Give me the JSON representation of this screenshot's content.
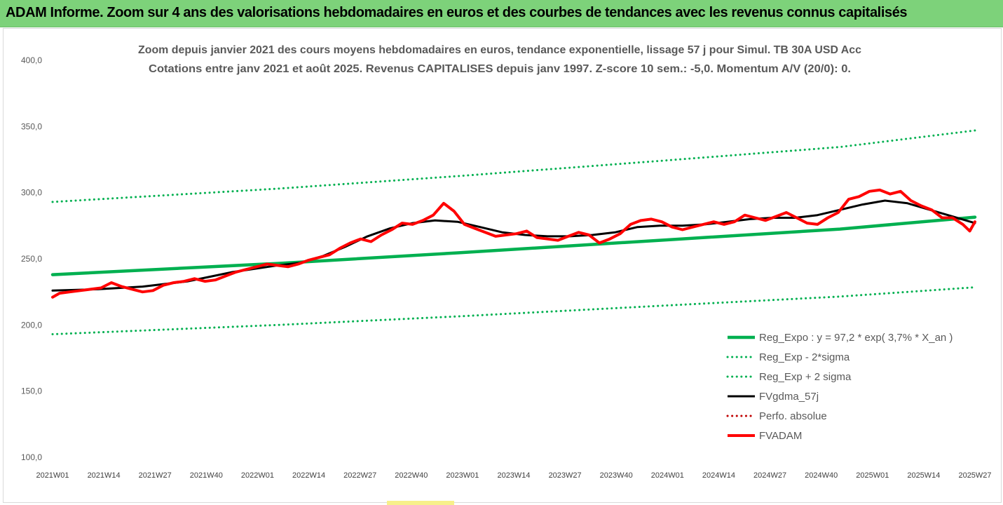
{
  "header": {
    "title": "ADAM Informe. Zoom sur 4 ans des valorisations hebdomadaires en euros et des courbes de tendances avec les revenus connus capitalisés"
  },
  "colors": {
    "banner": "#7dd27a",
    "regression": "#00b050",
    "smoothing": "#000000",
    "price": "#ff0000",
    "perf": "#c00000"
  },
  "chart_data": {
    "type": "line",
    "title": "Zoom depuis janvier 2021 des cours moyens hebdomadaires en euros, tendance exponentielle, lissage 57 j pour Simul. TB 30A USD Acc",
    "subtitle": "Cotations entre janv 2021 et août 2025. Revenus CAPITALISES depuis janv 1997. Z-score 10 sem.: -5,0. Momentum A/V (20/0): 0.",
    "ylim": [
      100,
      400
    ],
    "yticks": [
      "100,0",
      "150,0",
      "200,0",
      "250,0",
      "300,0",
      "350,0",
      "400,0"
    ],
    "x_tick_labels": [
      "2021W01",
      "2021W14",
      "2021W27",
      "2021W40",
      "2022W01",
      "2022W14",
      "2022W27",
      "2022W40",
      "2023W01",
      "2023W14",
      "2023W27",
      "2023W40",
      "2024W01",
      "2024W14",
      "2024W27",
      "2024W40",
      "2025W01",
      "2025W14",
      "2025W27"
    ],
    "grid": false,
    "legend_position": "bottom-right",
    "series": [
      {
        "name": "Reg_Expo : y = 97,2 * exp( 3,7% * X_an )",
        "style": "solid-thick",
        "color": "#00b050",
        "points": [
          [
            0,
            238
          ],
          [
            130,
            246.5
          ],
          [
            234,
            254.5
          ],
          [
            351,
            264
          ],
          [
            455,
            272.5
          ],
          [
            533,
            281.5
          ]
        ]
      },
      {
        "name": "Reg_Exp - 2*sigma",
        "style": "dotted",
        "color": "#00b050",
        "points": [
          [
            0,
            193
          ],
          [
            130,
            200
          ],
          [
            234,
            206.5
          ],
          [
            351,
            214.5
          ],
          [
            455,
            221.5
          ],
          [
            533,
            228.5
          ]
        ]
      },
      {
        "name": "Reg_Exp + 2 sigma",
        "style": "dotted",
        "color": "#00b050",
        "points": [
          [
            0,
            293
          ],
          [
            130,
            303
          ],
          [
            234,
            312.5
          ],
          [
            351,
            324
          ],
          [
            455,
            334.5
          ],
          [
            533,
            347
          ]
        ]
      },
      {
        "name": "FVgdma_57j",
        "style": "solid",
        "color": "#000000",
        "points": [
          [
            0,
            226
          ],
          [
            26,
            227
          ],
          [
            52,
            229
          ],
          [
            78,
            233
          ],
          [
            104,
            240
          ],
          [
            130,
            245
          ],
          [
            143,
            247
          ],
          [
            156,
            252
          ],
          [
            169,
            259
          ],
          [
            182,
            267
          ],
          [
            195,
            273
          ],
          [
            208,
            277
          ],
          [
            221,
            279
          ],
          [
            234,
            278
          ],
          [
            247,
            274
          ],
          [
            260,
            270
          ],
          [
            273,
            268
          ],
          [
            286,
            267
          ],
          [
            299,
            267
          ],
          [
            312,
            268
          ],
          [
            325,
            270
          ],
          [
            338,
            274
          ],
          [
            351,
            275
          ],
          [
            364,
            275
          ],
          [
            377,
            276
          ],
          [
            390,
            278
          ],
          [
            403,
            280
          ],
          [
            416,
            281
          ],
          [
            429,
            281
          ],
          [
            442,
            283
          ],
          [
            455,
            287
          ],
          [
            468,
            291
          ],
          [
            481,
            294
          ],
          [
            494,
            292
          ],
          [
            507,
            287
          ],
          [
            520,
            282
          ],
          [
            533,
            277
          ]
        ]
      },
      {
        "name": "Perfo. absolue",
        "style": "dotted",
        "color": "#c00000",
        "points": []
      },
      {
        "name": "FVADAM",
        "style": "solid-thick",
        "color": "#ff0000",
        "points": [
          [
            0,
            221
          ],
          [
            4,
            224
          ],
          [
            10,
            225
          ],
          [
            16,
            226
          ],
          [
            22,
            227
          ],
          [
            28,
            228
          ],
          [
            34,
            232
          ],
          [
            40,
            229
          ],
          [
            46,
            227
          ],
          [
            52,
            225
          ],
          [
            58,
            226
          ],
          [
            64,
            230
          ],
          [
            70,
            232
          ],
          [
            76,
            233
          ],
          [
            82,
            235
          ],
          [
            88,
            233
          ],
          [
            94,
            234
          ],
          [
            100,
            237
          ],
          [
            106,
            240
          ],
          [
            112,
            242
          ],
          [
            118,
            244
          ],
          [
            124,
            246
          ],
          [
            130,
            245
          ],
          [
            136,
            244
          ],
          [
            142,
            246
          ],
          [
            148,
            249
          ],
          [
            154,
            251
          ],
          [
            160,
            253
          ],
          [
            166,
            258
          ],
          [
            172,
            262
          ],
          [
            178,
            265
          ],
          [
            184,
            263
          ],
          [
            190,
            268
          ],
          [
            196,
            272
          ],
          [
            202,
            277
          ],
          [
            208,
            276
          ],
          [
            214,
            279
          ],
          [
            220,
            283
          ],
          [
            226,
            292
          ],
          [
            232,
            286
          ],
          [
            238,
            276
          ],
          [
            244,
            273
          ],
          [
            250,
            270
          ],
          [
            256,
            267
          ],
          [
            262,
            268
          ],
          [
            268,
            269
          ],
          [
            274,
            271
          ],
          [
            280,
            266
          ],
          [
            286,
            265
          ],
          [
            292,
            264
          ],
          [
            298,
            267
          ],
          [
            304,
            270
          ],
          [
            310,
            268
          ],
          [
            316,
            262
          ],
          [
            322,
            265
          ],
          [
            328,
            269
          ],
          [
            334,
            276
          ],
          [
            340,
            279
          ],
          [
            346,
            280
          ],
          [
            352,
            278
          ],
          [
            358,
            274
          ],
          [
            364,
            272
          ],
          [
            370,
            274
          ],
          [
            376,
            276
          ],
          [
            382,
            278
          ],
          [
            388,
            276
          ],
          [
            394,
            278
          ],
          [
            400,
            283
          ],
          [
            406,
            281
          ],
          [
            412,
            279
          ],
          [
            418,
            282
          ],
          [
            424,
            285
          ],
          [
            430,
            281
          ],
          [
            436,
            277
          ],
          [
            442,
            276
          ],
          [
            448,
            281
          ],
          [
            454,
            285
          ],
          [
            460,
            295
          ],
          [
            466,
            297
          ],
          [
            472,
            301
          ],
          [
            478,
            302
          ],
          [
            484,
            299
          ],
          [
            490,
            301
          ],
          [
            496,
            294
          ],
          [
            502,
            290
          ],
          [
            508,
            287
          ],
          [
            514,
            281
          ],
          [
            520,
            281
          ],
          [
            526,
            276
          ],
          [
            530,
            271
          ],
          [
            533,
            278
          ]
        ]
      }
    ]
  }
}
